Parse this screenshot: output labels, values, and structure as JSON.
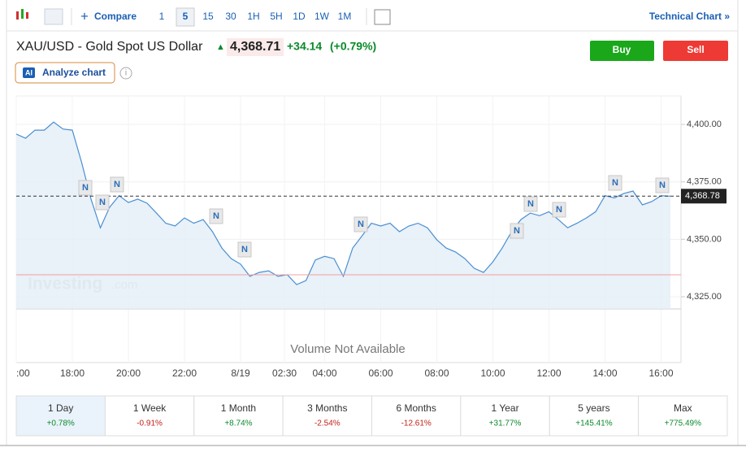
{
  "toolbar": {
    "compare": "Compare",
    "intervals": [
      "1",
      "5",
      "15",
      "30",
      "1H",
      "5H",
      "1D",
      "1W",
      "1M"
    ],
    "technical": "Technical Chart »"
  },
  "header": {
    "title": "XAU/USD - Gold Spot US Dollar",
    "price": "4,368.71",
    "change": "+34.14",
    "change_pct": "(+0.79%)",
    "buy": "Buy",
    "sell": "Sell",
    "ai_badge": "AI",
    "analyze": "Analyze chart",
    "info": "i"
  },
  "chart": {
    "type": "line",
    "values": [
      4395.8,
      4394,
      4397.5,
      4397.5,
      4401,
      4398,
      4397.5,
      4383.4,
      4367.5,
      4355,
      4364,
      4369,
      4366,
      4367.5,
      4365.7,
      4361.4,
      4357,
      4355.8,
      4359.3,
      4357,
      4358.6,
      4353.3,
      4346.2,
      4341.6,
      4339.2,
      4333.9,
      4335.6,
      4336.3,
      4333.9,
      4334.6,
      4330.3,
      4332,
      4341,
      4342.6,
      4341.6,
      4333.9,
      4346.2,
      4351.5,
      4357,
      4355.8,
      4357,
      4353.3,
      4355.8,
      4357,
      4355,
      4349.8,
      4346.2,
      4344.5,
      4341.6,
      4337.4,
      4335.6,
      4340.2,
      4346.2,
      4353.3,
      4358.6,
      4361.4,
      4360.3,
      4362,
      4358.6,
      4355,
      4357,
      4359.3,
      4362,
      4369,
      4368,
      4369.9,
      4371,
      4365,
      4366.4,
      4369,
      4368.78
    ],
    "color": "#4a8fd1",
    "ylim": [
      4319.7,
      4412.4
    ],
    "yticks": [
      {
        "value": 4325,
        "label": "4,325.00"
      },
      {
        "value": 4350,
        "label": "4,350.00"
      },
      {
        "value": 4375,
        "label": "4,375.00"
      },
      {
        "value": 4400,
        "label": "4,400.00"
      }
    ],
    "xlim": [
      0,
      70
    ],
    "xticks": [
      {
        "value": 0,
        "label": ":00"
      },
      {
        "value": 6,
        "label": "18:00"
      },
      {
        "value": 12,
        "label": "20:00"
      },
      {
        "value": 18,
        "label": "22:00"
      },
      {
        "value": 24,
        "label": "8/19"
      },
      {
        "value": 28.7,
        "label": "02:30"
      },
      {
        "value": 33,
        "label": "04:00"
      },
      {
        "value": 39,
        "label": "06:00"
      },
      {
        "value": 45,
        "label": "08:00"
      },
      {
        "value": 51,
        "label": "10:00"
      },
      {
        "value": 57,
        "label": "12:00"
      },
      {
        "value": 63,
        "label": "14:00"
      },
      {
        "value": 69,
        "label": "16:00"
      }
    ],
    "last_price": {
      "value": 4368.78,
      "label": "4,368.78"
    },
    "reference_line": 4334.57,
    "news_label": "N",
    "watermark": "Investing",
    "watermark_suffix": ".com",
    "volume_note": "Volume Not Available"
  },
  "periods": [
    {
      "name": "1 Day",
      "change": "+0.78%"
    },
    {
      "name": "1 Week",
      "change": "-0.91%"
    },
    {
      "name": "1 Month",
      "change": "+8.74%"
    },
    {
      "name": "3 Months",
      "change": "-2.54%"
    },
    {
      "name": "6 Months",
      "change": "-12.61%"
    },
    {
      "name": "1 Year",
      "change": "+31.77%"
    },
    {
      "name": "5 years",
      "change": "+145.41%"
    },
    {
      "name": "Max",
      "change": "+775.49%"
    }
  ]
}
